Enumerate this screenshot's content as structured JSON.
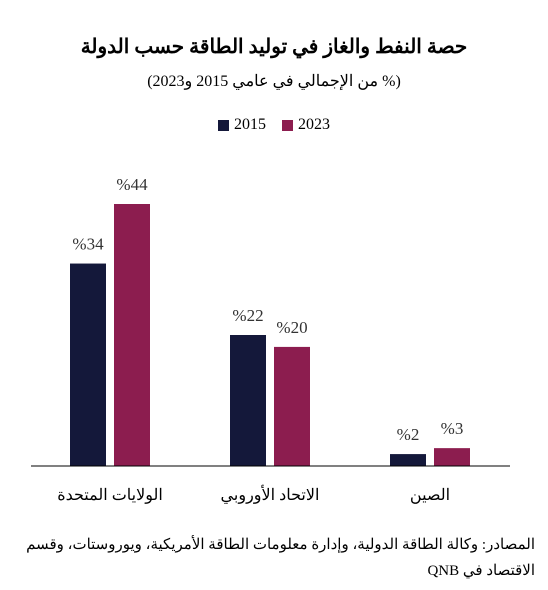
{
  "title": "حصة النفط والغاز في توليد الطاقة حسب الدولة",
  "subtitle": "(% من الإجمالي في عامي 2015 و2023)",
  "source": "المصادر: وكالة الطاقة الدولية، وإدارة معلومات الطاقة الأمريكية، ويوروستات، وقسم الاقتصاد في QNB",
  "colors": {
    "2015": "#14183a",
    "2023": "#8c1d4f"
  },
  "chart_data": {
    "type": "bar",
    "categories": [
      "الولايات المتحدة",
      "الاتحاد الأوروبي",
      "الصين"
    ],
    "series": [
      {
        "name": "2015",
        "values": [
          34,
          22,
          2
        ],
        "labels": [
          "%34",
          "%22",
          "%2"
        ]
      },
      {
        "name": "2023",
        "values": [
          44,
          20,
          3
        ],
        "labels": [
          "%44",
          "%20",
          "%3"
        ]
      }
    ],
    "title": "حصة النفط والغاز في توليد الطاقة حسب الدولة",
    "subtitle": "(% من الإجمالي في عامي 2015 و2023)",
    "xlabel": "",
    "ylabel": "",
    "ylim": [
      0,
      44
    ],
    "grid": false,
    "legend": "top-center"
  }
}
